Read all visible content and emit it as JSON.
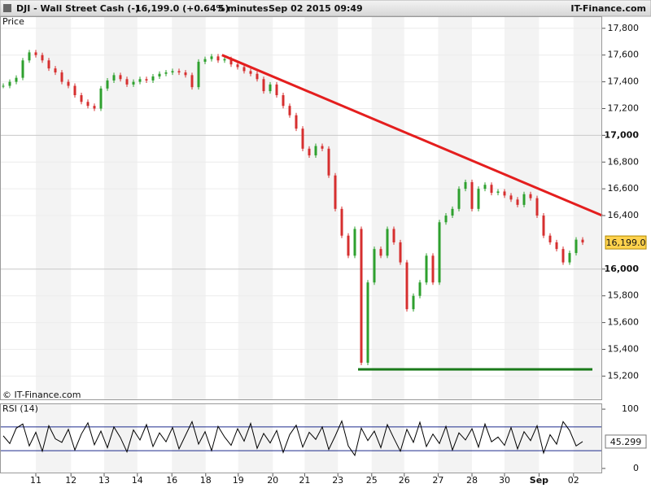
{
  "header": {
    "title": "DJI - Wall Street Cash (-)",
    "quote": "16,199.0 (+0.64%)",
    "interval": "5 minutes",
    "timestamp": "Sep 02 2015 09:49",
    "brand": "IT-Finance.com"
  },
  "chart_data": [
    {
      "type": "candles",
      "title": "Price",
      "watermark": "© IT-Finance.com",
      "up_color": "#2ea02e",
      "down_color": "#d62f2f",
      "values": [
        17370,
        17400,
        17430,
        17560,
        17620,
        17600,
        17560,
        17500,
        17470,
        17400,
        17370,
        17300,
        17250,
        17220,
        17200,
        17350,
        17410,
        17450,
        17420,
        17380,
        17400,
        17420,
        17410,
        17440,
        17460,
        17470,
        17480,
        17470,
        17450,
        17360,
        17550,
        17570,
        17590,
        17560,
        17570,
        17530,
        17510,
        17480,
        17460,
        17420,
        17330,
        17380,
        17300,
        17220,
        17150,
        17050,
        16900,
        16850,
        16920,
        16900,
        16700,
        16450,
        16250,
        16100,
        16300,
        15300,
        15900,
        16150,
        16100,
        16300,
        16200,
        16050,
        15700,
        15800,
        15900,
        16100,
        15900,
        16350,
        16400,
        16450,
        16600,
        16650,
        16450,
        16600,
        16630,
        16570,
        16580,
        16550,
        16520,
        16480,
        16560,
        16530,
        16400,
        16250,
        16200,
        16150,
        16050,
        16120,
        16220,
        16199
      ],
      "last_label": "16,199.0",
      "trendlines": [
        {
          "color": "#e41e1e",
          "points": [
            [
              33.6,
              17600
            ],
            [
              92,
              16400
            ]
          ]
        },
        {
          "color": "#1a7a1a",
          "points": [
            [
              54.5,
              15250
            ],
            [
              90.5,
              15250
            ]
          ]
        }
      ],
      "xlim": [
        -0.5,
        92
      ],
      "xticks": [
        {
          "value": 5,
          "label": "11"
        },
        {
          "value": 10.4,
          "label": "12"
        },
        {
          "value": 15.5,
          "label": "13"
        },
        {
          "value": 20.6,
          "label": "14"
        },
        {
          "value": 25.9,
          "label": "16"
        },
        {
          "value": 31.1,
          "label": "18"
        },
        {
          "value": 36.1,
          "label": "19"
        },
        {
          "value": 41.4,
          "label": "20"
        },
        {
          "value": 46.3,
          "label": "21"
        },
        {
          "value": 51.4,
          "label": "23"
        },
        {
          "value": 56.6,
          "label": "25"
        },
        {
          "value": 61.6,
          "label": "26"
        },
        {
          "value": 66.8,
          "label": "27"
        },
        {
          "value": 72,
          "label": "28"
        },
        {
          "value": 77,
          "label": "30"
        },
        {
          "value": 82.3,
          "label": "Sep",
          "bold": true
        },
        {
          "value": 87.6,
          "label": "02"
        }
      ],
      "ylim": [
        15020,
        17890
      ],
      "yticks": [
        {
          "value": 15200,
          "label": "15,200"
        },
        {
          "value": 15400,
          "label": "15,400"
        },
        {
          "value": 15600,
          "label": "15,600"
        },
        {
          "value": 15800,
          "label": "15,800"
        },
        {
          "value": 16000,
          "label": "16,000",
          "bold": true
        },
        {
          "value": 16400,
          "label": "16,400"
        },
        {
          "value": 16600,
          "label": "16,600"
        },
        {
          "value": 16800,
          "label": "16,800"
        },
        {
          "value": 17000,
          "label": "17,000",
          "bold": true
        },
        {
          "value": 17200,
          "label": "17,200"
        },
        {
          "value": 17400,
          "label": "17,400"
        },
        {
          "value": 17600,
          "label": "17,600"
        },
        {
          "value": 17800,
          "label": "17,800"
        }
      ],
      "grid": true
    },
    {
      "type": "line",
      "title": "RSI (14)",
      "color": "#000000",
      "values": [
        55,
        42,
        68,
        75,
        38,
        61,
        29,
        72,
        50,
        44,
        66,
        31,
        58,
        77,
        40,
        63,
        35,
        70,
        52,
        28,
        65,
        48,
        74,
        37,
        60,
        45,
        69,
        33,
        56,
        79,
        41,
        62,
        30,
        71,
        53,
        39,
        67,
        46,
        76,
        34,
        59,
        43,
        64,
        27,
        57,
        73,
        36,
        61,
        49,
        70,
        32,
        55,
        80,
        38,
        22,
        68,
        47,
        63,
        35,
        74,
        51,
        29,
        66,
        44,
        78,
        37,
        58,
        42,
        71,
        31,
        60,
        48,
        67,
        36,
        75,
        45,
        53,
        39,
        69,
        33,
        62,
        47,
        72,
        26,
        57,
        41,
        79,
        64,
        38,
        45.299
      ],
      "levels": [
        30,
        70
      ],
      "level_color": "#1c2a8c",
      "xlim": [
        -0.5,
        92
      ],
      "ylim": [
        -8.3,
        109.7
      ],
      "yticks": [
        0,
        100
      ]
    }
  ]
}
